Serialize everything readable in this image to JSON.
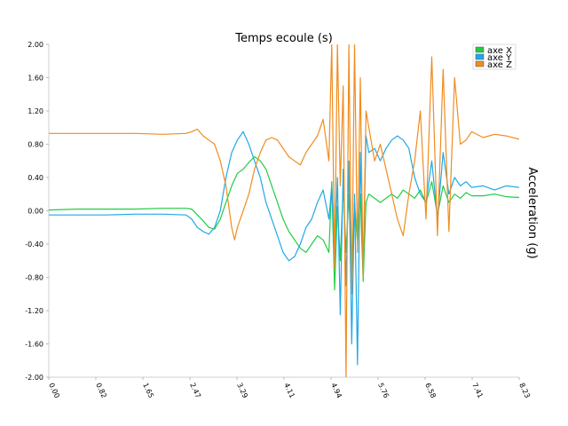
{
  "chart_data": {
    "type": "line",
    "title": "Temps ecoule (s)",
    "xlabel": "",
    "ylabel": "Acceleration (g)",
    "xlim": [
      0,
      8.23
    ],
    "ylim": [
      -2.0,
      2.0
    ],
    "x_ticks": [
      "0.00",
      "0.82",
      "1.65",
      "2.47",
      "3.29",
      "4.11",
      "4.94",
      "5.76",
      "6.58",
      "7.41",
      "8.23"
    ],
    "y_ticks": [
      "2.00",
      "1.60",
      "1.20",
      "0.80",
      "0.40",
      "0.00",
      "-0.40",
      "-0.80",
      "-1.20",
      "-1.60",
      "-2.00"
    ],
    "grid": false,
    "legend_position": "top-right",
    "series": [
      {
        "name": "axe X",
        "color": "#22cc44",
        "points": [
          [
            0,
            0.01
          ],
          [
            0.5,
            0.02
          ],
          [
            1.0,
            0.02
          ],
          [
            1.5,
            0.02
          ],
          [
            2.0,
            0.03
          ],
          [
            2.4,
            0.03
          ],
          [
            2.5,
            0.02
          ],
          [
            2.6,
            -0.05
          ],
          [
            2.7,
            -0.12
          ],
          [
            2.8,
            -0.2
          ],
          [
            2.9,
            -0.22
          ],
          [
            3.0,
            -0.1
          ],
          [
            3.1,
            0.1
          ],
          [
            3.2,
            0.3
          ],
          [
            3.3,
            0.45
          ],
          [
            3.4,
            0.5
          ],
          [
            3.5,
            0.58
          ],
          [
            3.6,
            0.65
          ],
          [
            3.7,
            0.6
          ],
          [
            3.8,
            0.5
          ],
          [
            3.9,
            0.3
          ],
          [
            4.0,
            0.1
          ],
          [
            4.1,
            -0.1
          ],
          [
            4.2,
            -0.25
          ],
          [
            4.3,
            -0.35
          ],
          [
            4.4,
            -0.45
          ],
          [
            4.5,
            -0.5
          ],
          [
            4.6,
            -0.4
          ],
          [
            4.7,
            -0.3
          ],
          [
            4.8,
            -0.35
          ],
          [
            4.9,
            -0.5
          ],
          [
            4.95,
            0.35
          ],
          [
            5.0,
            -0.95
          ],
          [
            5.05,
            0.05
          ],
          [
            5.1,
            -0.6
          ],
          [
            5.15,
            0.3
          ],
          [
            5.2,
            -0.5
          ],
          [
            5.25,
            0.2
          ],
          [
            5.3,
            -0.8
          ],
          [
            5.35,
            0.1
          ],
          [
            5.4,
            -0.4
          ],
          [
            5.45,
            0.2
          ],
          [
            5.5,
            -0.85
          ],
          [
            5.55,
            0.1
          ],
          [
            5.6,
            0.2
          ],
          [
            5.7,
            0.15
          ],
          [
            5.8,
            0.1
          ],
          [
            5.9,
            0.15
          ],
          [
            6.0,
            0.2
          ],
          [
            6.1,
            0.15
          ],
          [
            6.2,
            0.25
          ],
          [
            6.3,
            0.2
          ],
          [
            6.4,
            0.15
          ],
          [
            6.5,
            0.25
          ],
          [
            6.6,
            0.1
          ],
          [
            6.7,
            0.35
          ],
          [
            6.8,
            -0.05
          ],
          [
            6.9,
            0.3
          ],
          [
            7.0,
            0.1
          ],
          [
            7.1,
            0.2
          ],
          [
            7.2,
            0.15
          ],
          [
            7.3,
            0.22
          ],
          [
            7.4,
            0.18
          ],
          [
            7.6,
            0.18
          ],
          [
            7.8,
            0.2
          ],
          [
            8.0,
            0.17
          ],
          [
            8.23,
            0.16
          ]
        ]
      },
      {
        "name": "axe Y",
        "color": "#1fa8e8",
        "points": [
          [
            0,
            -0.05
          ],
          [
            0.5,
            -0.05
          ],
          [
            1.0,
            -0.05
          ],
          [
            1.5,
            -0.04
          ],
          [
            2.0,
            -0.04
          ],
          [
            2.4,
            -0.05
          ],
          [
            2.5,
            -0.1
          ],
          [
            2.6,
            -0.2
          ],
          [
            2.7,
            -0.25
          ],
          [
            2.8,
            -0.28
          ],
          [
            2.9,
            -0.2
          ],
          [
            3.0,
            0.0
          ],
          [
            3.1,
            0.4
          ],
          [
            3.2,
            0.7
          ],
          [
            3.3,
            0.85
          ],
          [
            3.4,
            0.95
          ],
          [
            3.5,
            0.8
          ],
          [
            3.6,
            0.6
          ],
          [
            3.7,
            0.4
          ],
          [
            3.8,
            0.1
          ],
          [
            3.9,
            -0.1
          ],
          [
            4.0,
            -0.3
          ],
          [
            4.1,
            -0.5
          ],
          [
            4.2,
            -0.6
          ],
          [
            4.3,
            -0.55
          ],
          [
            4.4,
            -0.4
          ],
          [
            4.5,
            -0.2
          ],
          [
            4.6,
            -0.1
          ],
          [
            4.7,
            0.1
          ],
          [
            4.8,
            0.25
          ],
          [
            4.9,
            -0.1
          ],
          [
            4.95,
            0.3
          ],
          [
            5.0,
            -0.6
          ],
          [
            5.05,
            0.4
          ],
          [
            5.1,
            -1.25
          ],
          [
            5.15,
            0.5
          ],
          [
            5.2,
            -0.9
          ],
          [
            5.25,
            0.6
          ],
          [
            5.3,
            -1.6
          ],
          [
            5.35,
            0.2
          ],
          [
            5.4,
            -1.85
          ],
          [
            5.45,
            0.7
          ],
          [
            5.5,
            -0.7
          ],
          [
            5.55,
            0.9
          ],
          [
            5.6,
            0.7
          ],
          [
            5.7,
            0.75
          ],
          [
            5.8,
            0.6
          ],
          [
            5.9,
            0.75
          ],
          [
            6.0,
            0.85
          ],
          [
            6.1,
            0.9
          ],
          [
            6.2,
            0.85
          ],
          [
            6.3,
            0.75
          ],
          [
            6.4,
            0.4
          ],
          [
            6.5,
            0.2
          ],
          [
            6.6,
            0.1
          ],
          [
            6.7,
            0.6
          ],
          [
            6.8,
            -0.1
          ],
          [
            6.9,
            0.7
          ],
          [
            7.0,
            0.2
          ],
          [
            7.1,
            0.4
          ],
          [
            7.2,
            0.3
          ],
          [
            7.3,
            0.35
          ],
          [
            7.4,
            0.28
          ],
          [
            7.6,
            0.3
          ],
          [
            7.8,
            0.25
          ],
          [
            8.0,
            0.3
          ],
          [
            8.23,
            0.28
          ]
        ]
      },
      {
        "name": "axe Z",
        "color": "#f08c1e",
        "points": [
          [
            0,
            0.93
          ],
          [
            0.5,
            0.93
          ],
          [
            1.0,
            0.93
          ],
          [
            1.5,
            0.93
          ],
          [
            2.0,
            0.92
          ],
          [
            2.4,
            0.93
          ],
          [
            2.5,
            0.95
          ],
          [
            2.6,
            0.98
          ],
          [
            2.7,
            0.9
          ],
          [
            2.8,
            0.85
          ],
          [
            2.9,
            0.8
          ],
          [
            3.0,
            0.6
          ],
          [
            3.1,
            0.3
          ],
          [
            3.2,
            -0.2
          ],
          [
            3.25,
            -0.35
          ],
          [
            3.3,
            -0.2
          ],
          [
            3.4,
            0.0
          ],
          [
            3.5,
            0.2
          ],
          [
            3.6,
            0.5
          ],
          [
            3.7,
            0.7
          ],
          [
            3.8,
            0.85
          ],
          [
            3.9,
            0.88
          ],
          [
            4.0,
            0.85
          ],
          [
            4.1,
            0.75
          ],
          [
            4.2,
            0.65
          ],
          [
            4.3,
            0.6
          ],
          [
            4.4,
            0.55
          ],
          [
            4.5,
            0.7
          ],
          [
            4.6,
            0.8
          ],
          [
            4.7,
            0.9
          ],
          [
            4.8,
            1.1
          ],
          [
            4.9,
            0.6
          ],
          [
            4.95,
            2.0
          ],
          [
            5.0,
            -0.7
          ],
          [
            5.05,
            2.0
          ],
          [
            5.1,
            0.3
          ],
          [
            5.15,
            1.5
          ],
          [
            5.2,
            -2.0
          ],
          [
            5.25,
            2.0
          ],
          [
            5.3,
            -1.0
          ],
          [
            5.35,
            2.0
          ],
          [
            5.4,
            -0.5
          ],
          [
            5.45,
            1.6
          ],
          [
            5.5,
            -0.8
          ],
          [
            5.55,
            1.2
          ],
          [
            5.6,
            1.0
          ],
          [
            5.7,
            0.6
          ],
          [
            5.8,
            0.8
          ],
          [
            5.9,
            0.5
          ],
          [
            6.0,
            0.2
          ],
          [
            6.1,
            -0.1
          ],
          [
            6.2,
            -0.3
          ],
          [
            6.3,
            0.2
          ],
          [
            6.4,
            0.6
          ],
          [
            6.5,
            1.2
          ],
          [
            6.6,
            -0.1
          ],
          [
            6.7,
            1.85
          ],
          [
            6.8,
            -0.3
          ],
          [
            6.9,
            1.7
          ],
          [
            7.0,
            -0.25
          ],
          [
            7.1,
            1.6
          ],
          [
            7.2,
            0.8
          ],
          [
            7.3,
            0.85
          ],
          [
            7.4,
            0.95
          ],
          [
            7.6,
            0.88
          ],
          [
            7.8,
            0.92
          ],
          [
            8.0,
            0.9
          ],
          [
            8.23,
            0.86
          ]
        ]
      }
    ]
  }
}
